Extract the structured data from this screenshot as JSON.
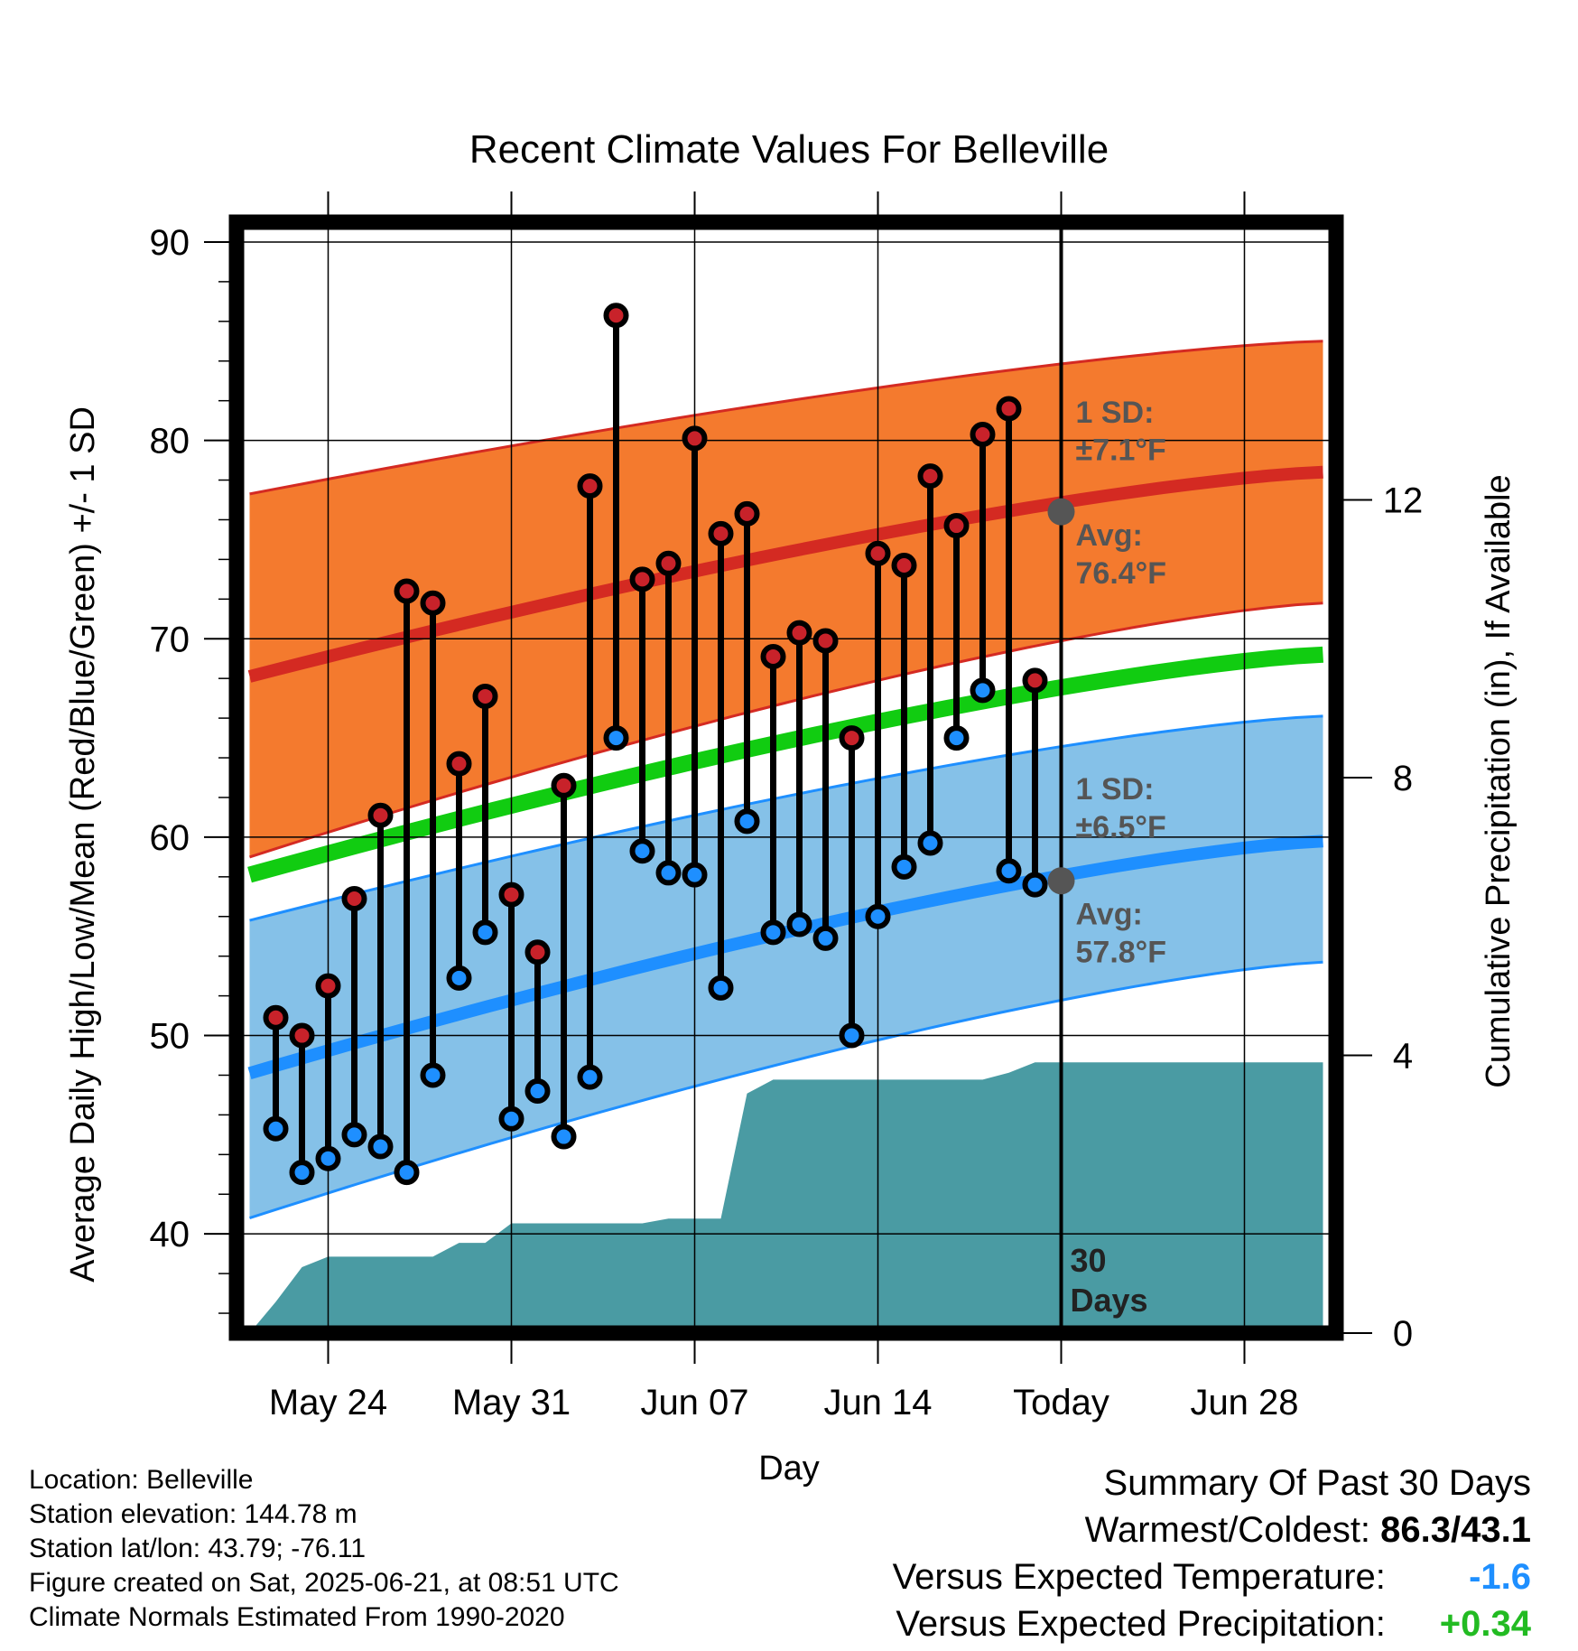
{
  "chart_data": {
    "type": "line",
    "title": "Recent Climate Values For Belleville",
    "xlabel": "Day",
    "ylabel": "Average Daily High/Low/Mean (Red/Blue/Green) +/- 1 SD",
    "y2label": "Cumulative Precipitation (in), If Available",
    "ylim": [
      35,
      91
    ],
    "y2lim": [
      0,
      16
    ],
    "yticks": [
      40,
      50,
      60,
      70,
      80,
      90
    ],
    "y2ticks": [
      0,
      4,
      8,
      12
    ],
    "x_range": [
      -31.5,
      10.5
    ],
    "xticks": [
      {
        "day": -28,
        "label": "May 24"
      },
      {
        "day": -21,
        "label": "May 31"
      },
      {
        "day": -14,
        "label": "Jun 07"
      },
      {
        "day": -7,
        "label": "Jun 14"
      },
      {
        "day": 0,
        "label": "Today"
      },
      {
        "day": 7,
        "label": "Jun 28"
      }
    ],
    "grid": true,
    "colors": {
      "high_band": "#f47a2e",
      "high_line": "#d42a22",
      "low_band": "#85c1e8",
      "low_line": "#1e8fff",
      "mean_line": "#11cc11",
      "precip": "#4a9ba3",
      "high_point": "#c8222a",
      "low_point": "#1e8fff"
    },
    "normals": {
      "x": [
        -31,
        10
      ],
      "high_avg": [
        68.1,
        78.4
      ],
      "high_sd_upper": [
        77.3,
        85.0
      ],
      "high_sd_lower": [
        59.0,
        71.8
      ],
      "low_avg": [
        48.1,
        59.8
      ],
      "low_sd_upper": [
        55.8,
        66.1
      ],
      "low_sd_lower": [
        40.8,
        53.7
      ],
      "mean_avg": [
        58.1,
        69.2
      ]
    },
    "observations": {
      "day": [
        -30,
        -29,
        -28,
        -27,
        -26,
        -25,
        -24,
        -23,
        -22,
        -21,
        -20,
        -19,
        -18,
        -17,
        -16,
        -15,
        -14,
        -13,
        -12,
        -11,
        -10,
        -9,
        -8,
        -7,
        -6,
        -5,
        -4,
        -3,
        -2,
        -1
      ],
      "high": [
        50.9,
        50.0,
        52.5,
        56.9,
        61.1,
        72.4,
        71.8,
        63.7,
        67.1,
        57.1,
        54.2,
        62.6,
        77.7,
        86.3,
        73.0,
        73.8,
        80.1,
        75.3,
        76.3,
        69.1,
        70.3,
        69.9,
        65.0,
        74.3,
        73.7,
        78.2,
        75.7,
        80.3,
        81.6,
        67.9
      ],
      "low": [
        45.3,
        43.1,
        43.8,
        45.0,
        44.4,
        43.1,
        48.0,
        52.9,
        55.2,
        45.8,
        47.2,
        44.9,
        47.9,
        65.0,
        59.3,
        58.2,
        58.1,
        52.4,
        60.8,
        55.2,
        55.6,
        54.9,
        50.0,
        56.0,
        58.5,
        59.7,
        65.0,
        67.4,
        58.3,
        57.6
      ]
    },
    "precipitation": {
      "day": [
        -31,
        -30,
        -29,
        -28,
        -27,
        -26,
        -25,
        -24,
        -23,
        -22,
        -21,
        -20,
        -19,
        -18,
        -17,
        -16,
        -15,
        -14,
        -13,
        -12,
        -11,
        -10,
        -9,
        -8,
        -7,
        -6,
        -5,
        -4,
        -3,
        -2,
        -1,
        0,
        10
      ],
      "cumulative": [
        0.0,
        0.45,
        0.95,
        1.1,
        1.1,
        1.1,
        1.1,
        1.1,
        1.3,
        1.3,
        1.58,
        1.58,
        1.58,
        1.58,
        1.58,
        1.58,
        1.65,
        1.65,
        1.65,
        3.45,
        3.65,
        3.65,
        3.65,
        3.65,
        3.65,
        3.65,
        3.65,
        3.65,
        3.65,
        3.75,
        3.9,
        3.9,
        3.9
      ]
    },
    "today_markers": {
      "high_avg": 76.4,
      "low_avg": 57.8
    },
    "annotations": {
      "high_sd_label": "1 SD:",
      "high_sd_value": "±7.1°F",
      "high_avg_label": "Avg:",
      "high_avg_value": "76.4°F",
      "low_sd_label": "1 SD:",
      "low_sd_value": "±6.5°F",
      "low_avg_label": "Avg:",
      "low_avg_value": "57.8°F",
      "days_label_1": "30",
      "days_label_2": "Days"
    }
  },
  "info": {
    "location": "Location: Belleville",
    "elevation": "Station elevation: 144.78 m",
    "latlon": "Station lat/lon: 43.79; -76.11",
    "created": "Figure created on Sat, 2025-06-21, at 08:51 UTC",
    "normals": "Climate Normals Estimated From 1990-2020"
  },
  "summary": {
    "title": "Summary Of Past 30 Days",
    "warmest_label": "Warmest/Coldest:",
    "warmest_value": "86.3/43.1",
    "temp_label": "Versus Expected Temperature:",
    "temp_value": "-1.6",
    "temp_color": "#1e8fff",
    "precip_label": "Versus Expected Precipitation:",
    "precip_value": "+0.34",
    "precip_color": "#22bb22"
  }
}
